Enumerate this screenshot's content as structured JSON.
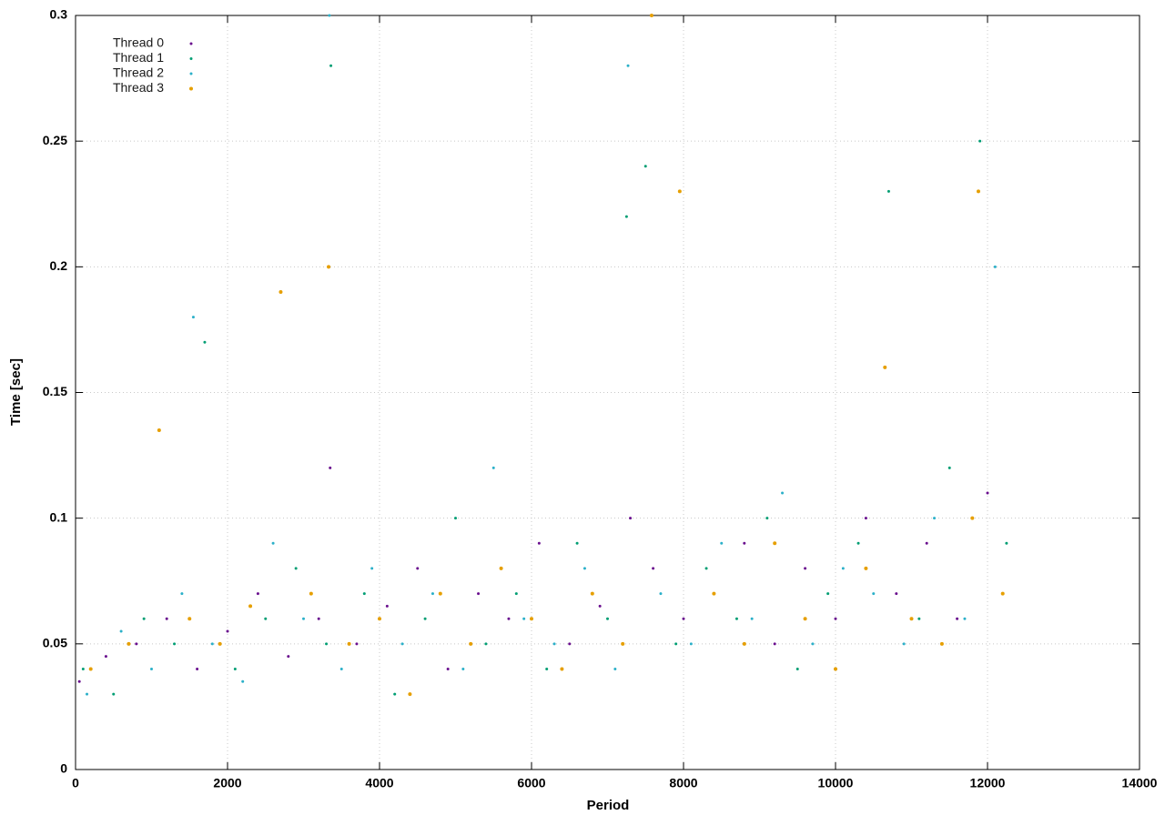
{
  "chart_data": {
    "type": "scatter",
    "x_label": "Period",
    "y_label": "Time [sec]",
    "xlim": [
      0,
      14000
    ],
    "xticks": [
      0,
      2000,
      4000,
      6000,
      8000,
      10000,
      12000,
      14000
    ],
    "ylim": [
      0,
      0.3
    ],
    "yticks": [
      0,
      0.05,
      0.1,
      0.15,
      0.2,
      0.25,
      0.3
    ],
    "grid": true,
    "legend": "top-left",
    "series": [
      {
        "name": "Thread 0",
        "color": "#6a0f8e",
        "x": [
          50,
          400,
          800,
          1200,
          1600,
          2000,
          2400,
          2800,
          3200,
          3350,
          3700,
          4100,
          4500,
          4900,
          5300,
          5700,
          6100,
          6500,
          6900,
          7300,
          7600,
          8000,
          8400,
          8800,
          9200,
          9600,
          10000,
          10400,
          10800,
          11200,
          11600,
          12000,
          12200
        ],
        "values": [
          0.035,
          0.045,
          0.05,
          0.06,
          0.04,
          0.055,
          0.07,
          0.045,
          0.06,
          0.12,
          0.05,
          0.065,
          0.08,
          0.04,
          0.07,
          0.06,
          0.09,
          0.05,
          0.065,
          0.1,
          0.08,
          0.06,
          0.07,
          0.09,
          0.05,
          0.08,
          0.06,
          0.1,
          0.07,
          0.09,
          0.06,
          0.11,
          0.07
        ]
      },
      {
        "name": "Thread 1",
        "color": "#009e73",
        "x": [
          100,
          500,
          900,
          1300,
          1700,
          2100,
          2500,
          2900,
          3300,
          3360,
          3800,
          4200,
          4600,
          5000,
          5400,
          5800,
          6200,
          6600,
          7000,
          7250,
          7500,
          7900,
          8300,
          8700,
          9100,
          9500,
          9900,
          10300,
          10700,
          11100,
          11500,
          11900,
          12250
        ],
        "values": [
          0.04,
          0.03,
          0.06,
          0.05,
          0.17,
          0.04,
          0.06,
          0.08,
          0.05,
          0.28,
          0.07,
          0.03,
          0.06,
          0.1,
          0.05,
          0.07,
          0.04,
          0.09,
          0.06,
          0.22,
          0.24,
          0.05,
          0.08,
          0.06,
          0.1,
          0.04,
          0.07,
          0.09,
          0.23,
          0.06,
          0.12,
          0.25,
          0.09
        ]
      },
      {
        "name": "Thread 2",
        "color": "#2bb0c9",
        "x": [
          150,
          600,
          1000,
          1400,
          1550,
          1800,
          2200,
          2600,
          3000,
          3340,
          3500,
          3900,
          4300,
          4700,
          5100,
          5500,
          5900,
          6300,
          6700,
          7100,
          7270,
          7700,
          8100,
          8500,
          8900,
          9300,
          9700,
          10100,
          10500,
          10900,
          11300,
          11700,
          12100
        ],
        "values": [
          0.03,
          0.055,
          0.04,
          0.07,
          0.18,
          0.05,
          0.035,
          0.09,
          0.06,
          0.3,
          0.04,
          0.08,
          0.05,
          0.07,
          0.04,
          0.12,
          0.06,
          0.05,
          0.08,
          0.04,
          0.28,
          0.07,
          0.05,
          0.09,
          0.06,
          0.11,
          0.05,
          0.08,
          0.07,
          0.05,
          0.1,
          0.06,
          0.2
        ]
      },
      {
        "name": "Thread 3",
        "color": "#e69f00",
        "x": [
          200,
          700,
          1100,
          1500,
          1900,
          2300,
          2700,
          3100,
          3330,
          3600,
          4000,
          4400,
          4800,
          5200,
          5600,
          6000,
          6400,
          6800,
          7200,
          7580,
          7950,
          8400,
          8800,
          9200,
          9600,
          10000,
          10400,
          10650,
          11000,
          11400,
          11800,
          11880,
          12200
        ],
        "values": [
          0.04,
          0.05,
          0.135,
          0.06,
          0.05,
          0.065,
          0.19,
          0.07,
          0.2,
          0.05,
          0.06,
          0.03,
          0.07,
          0.05,
          0.08,
          0.06,
          0.04,
          0.07,
          0.05,
          0.3,
          0.23,
          0.07,
          0.05,
          0.09,
          0.06,
          0.04,
          0.08,
          0.16,
          0.06,
          0.05,
          0.1,
          0.23,
          0.07
        ]
      }
    ]
  }
}
